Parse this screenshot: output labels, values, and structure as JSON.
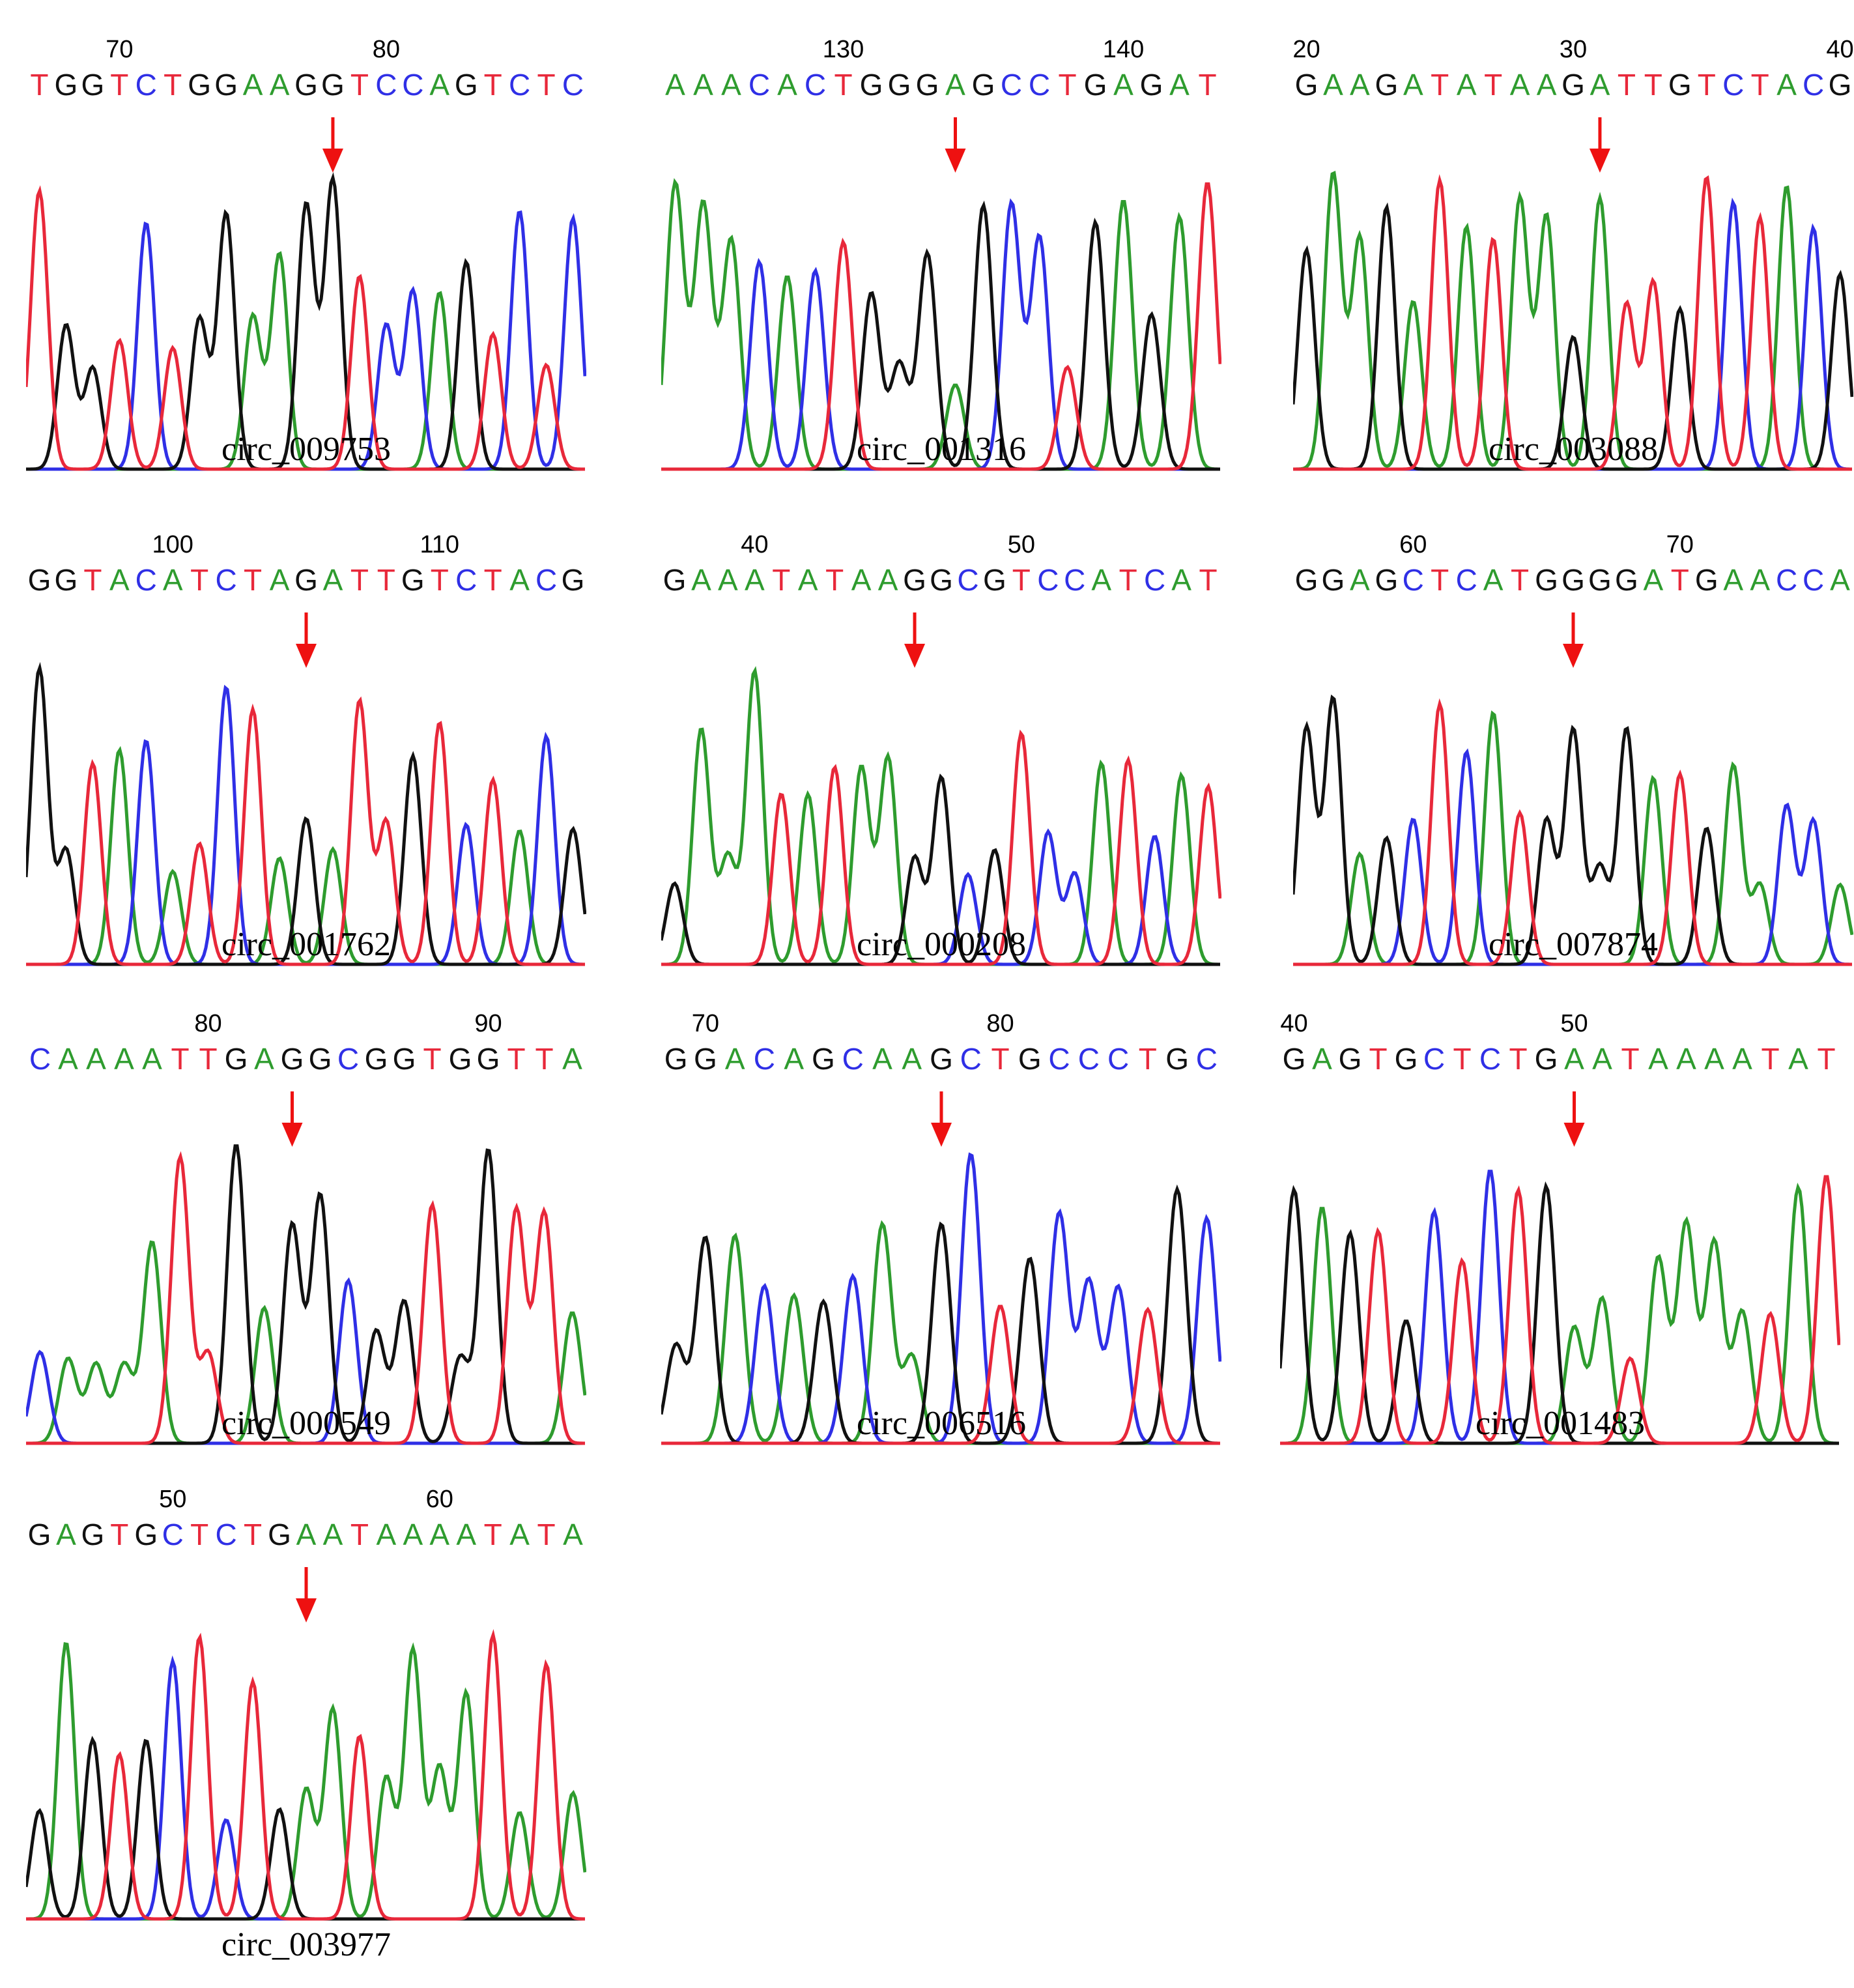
{
  "colors": {
    "A": "#2e9c2e",
    "C": "#2f2fe6",
    "G": "#111111",
    "T": "#e8283a",
    "arrow": "#ee1111"
  },
  "panels": [
    {
      "label": "circ_009753",
      "sequence": "TGGTCTGGAAGGTCCAGTCTC",
      "ticks": [
        {
          "text": "70",
          "index": 3
        },
        {
          "text": "80",
          "index": 13
        }
      ],
      "arrow_index": 11,
      "seed": 11
    },
    {
      "label": "circ_001316",
      "sequence": "AAACACTGGGAGCCTGAGAT",
      "ticks": [
        {
          "text": "130",
          "index": 6
        },
        {
          "text": "140",
          "index": 16
        }
      ],
      "arrow_index": 10,
      "seed": 23
    },
    {
      "label": "circ_003088",
      "sequence": "GAAGATATAAGATTGTCTACG",
      "ticks": [
        {
          "text": "20",
          "index": 0
        },
        {
          "text": "30",
          "index": 10
        },
        {
          "text": "40",
          "index": 20
        }
      ],
      "arrow_index": 11,
      "seed": 37
    },
    {
      "label": "circ_001762",
      "sequence": "GGTACATCTAGATTGTCTACG",
      "ticks": [
        {
          "text": "100",
          "index": 5
        },
        {
          "text": "110",
          "index": 15
        }
      ],
      "arrow_index": 10,
      "seed": 41
    },
    {
      "label": "circ_000208",
      "sequence": "GAAATATAAGGCGTCCATCAT",
      "ticks": [
        {
          "text": "40",
          "index": 3
        },
        {
          "text": "50",
          "index": 13
        }
      ],
      "arrow_index": 9,
      "seed": 53
    },
    {
      "label": "circ_007874",
      "sequence": "GGAGCTCATGGGGATGAACCA",
      "ticks": [
        {
          "text": "60",
          "index": 4
        },
        {
          "text": "70",
          "index": 14
        }
      ],
      "arrow_index": 10,
      "seed": 67
    },
    {
      "label": "circ_000549",
      "sequence": "CAAAATTGAGGCGGTGGTTA",
      "ticks": [
        {
          "text": "80",
          "index": 6
        },
        {
          "text": "90",
          "index": 16
        }
      ],
      "arrow_index": 9,
      "seed": 71
    },
    {
      "label": "circ_006516",
      "sequence": "GGACAGCAAGCTGCCCTGC",
      "ticks": [
        {
          "text": "70",
          "index": 1
        },
        {
          "text": "80",
          "index": 11
        }
      ],
      "arrow_index": 9,
      "seed": 83
    },
    {
      "label": "circ_001483",
      "sequence": "GAGTGCTCTGAATAAAATAT",
      "ticks": [
        {
          "text": "40",
          "index": 0
        },
        {
          "text": "50",
          "index": 10
        }
      ],
      "arrow_index": 10,
      "seed": 97
    },
    {
      "label": "circ_003977",
      "sequence": "GAGTGCTCTGAATAAAATATA",
      "ticks": [
        {
          "text": "50",
          "index": 5
        },
        {
          "text": "60",
          "index": 15
        }
      ],
      "arrow_index": 10,
      "seed": 101
    }
  ]
}
